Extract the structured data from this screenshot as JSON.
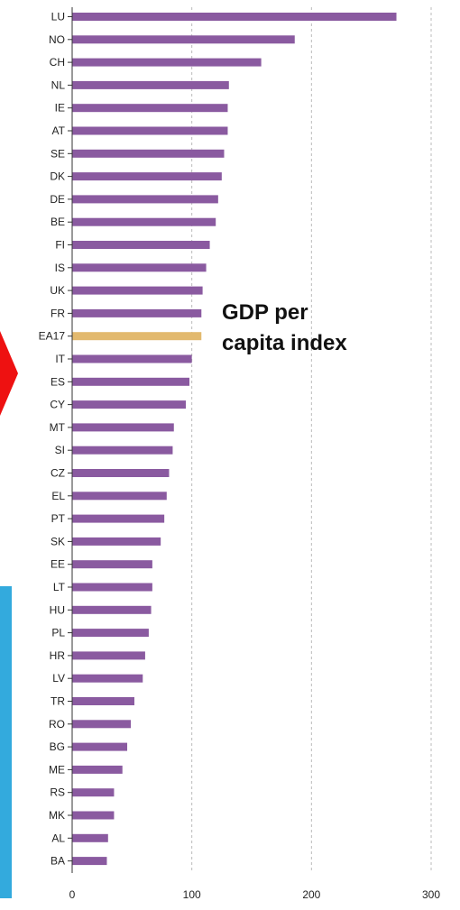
{
  "chart_data": {
    "type": "bar",
    "orientation": "horizontal",
    "title": "",
    "xlabel": "",
    "ylabel": "",
    "annotation": "GDP per\ncapita index",
    "categories": [
      "LU",
      "NO",
      "CH",
      "NL",
      "IE",
      "AT",
      "SE",
      "DK",
      "DE",
      "BE",
      "FI",
      "IS",
      "UK",
      "FR",
      "EA17",
      "IT",
      "ES",
      "CY",
      "MT",
      "SI",
      "CZ",
      "EL",
      "PT",
      "SK",
      "EE",
      "LT",
      "HU",
      "PL",
      "HR",
      "LV",
      "TR",
      "RO",
      "BG",
      "ME",
      "RS",
      "MK",
      "AL",
      "BA"
    ],
    "values": [
      271,
      186,
      158,
      131,
      130,
      130,
      127,
      125,
      122,
      120,
      115,
      112,
      109,
      108,
      108,
      100,
      98,
      95,
      85,
      84,
      81,
      79,
      77,
      74,
      67,
      67,
      66,
      64,
      61,
      59,
      52,
      49,
      46,
      42,
      35,
      35,
      30,
      29
    ],
    "highlight": "EA17",
    "xlim": [
      0,
      300
    ],
    "xticks": [
      0,
      100,
      200,
      300
    ],
    "grid": "vertical dashed"
  },
  "colors": {
    "bar": "#8a5aa0",
    "highlight": "#e2b96e",
    "axis": "#333333",
    "grid": "#bbbbbb",
    "arrow": "#ee1111",
    "side_box": "#33aadd"
  }
}
